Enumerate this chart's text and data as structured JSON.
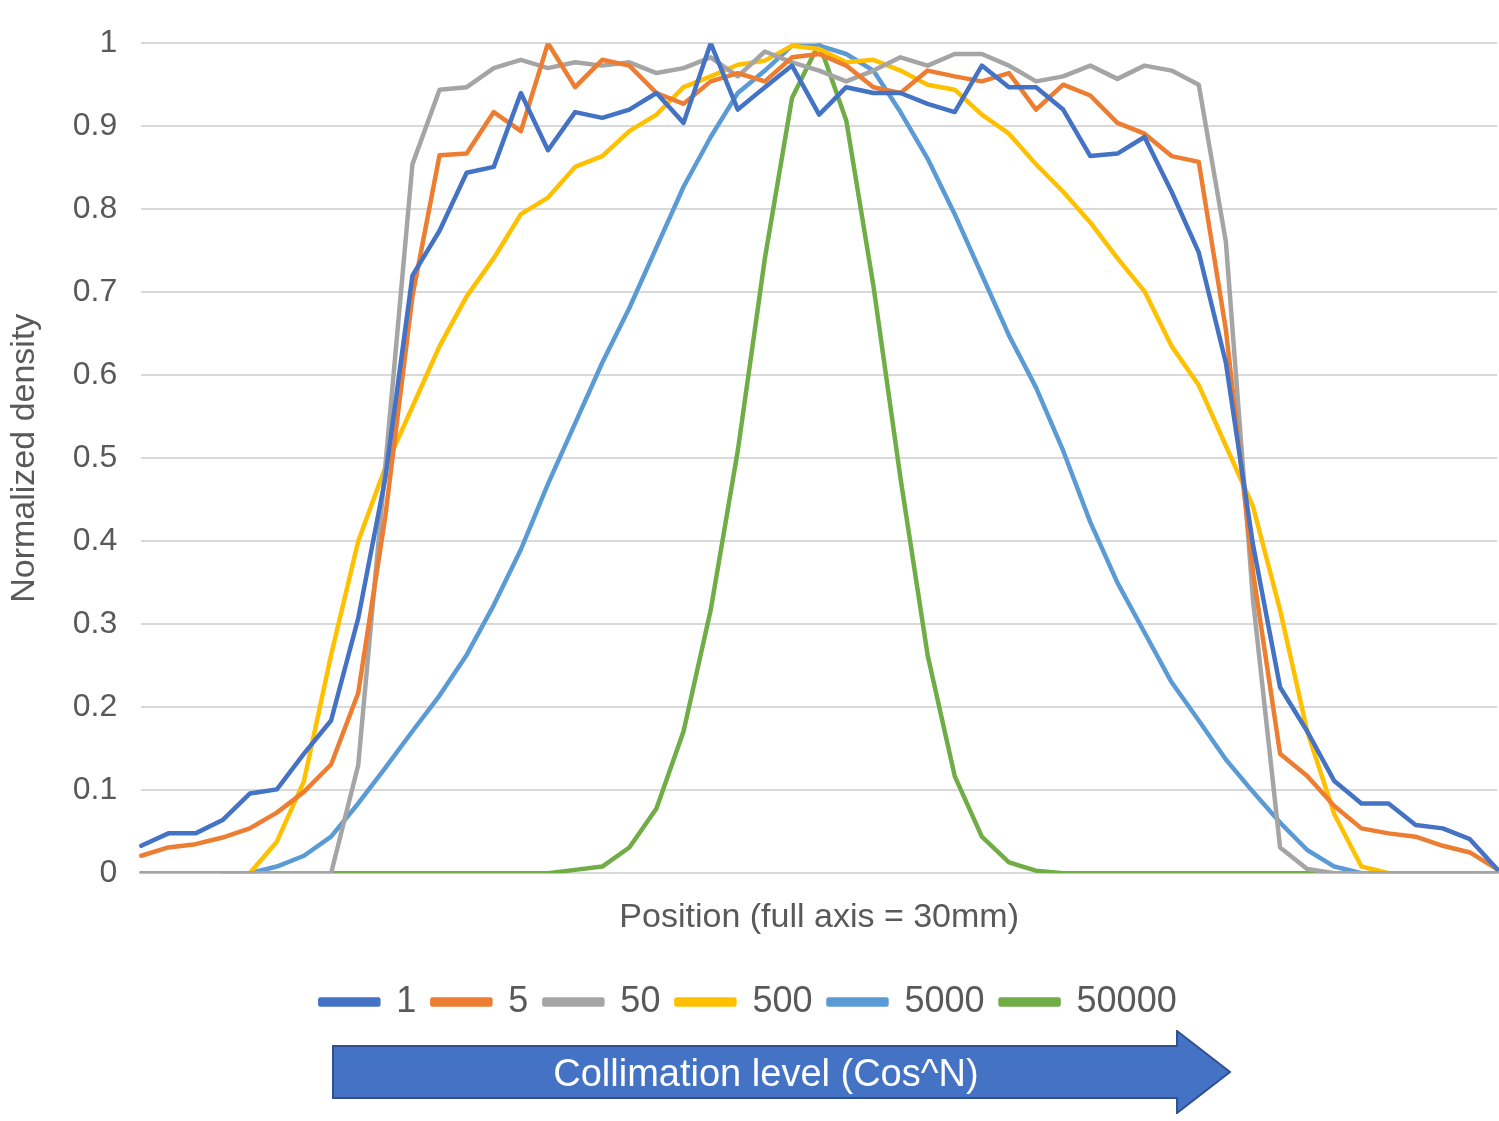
{
  "chart_data": {
    "type": "line",
    "xlabel": "Position (full axis = 30mm)",
    "ylabel": "Normalized density",
    "legend_title": "Collimation level (Cos^N)",
    "categories": [
      null,
      null,
      null,
      null,
      null,
      null,
      null,
      null,
      null,
      null,
      null,
      null,
      null,
      null,
      null,
      null,
      null,
      null,
      null,
      null,
      null,
      null,
      null,
      null,
      null,
      null,
      null,
      null,
      null,
      null,
      null,
      null,
      null,
      null,
      null,
      null,
      null,
      null,
      null,
      null,
      null,
      null,
      null,
      null,
      null,
      null,
      null,
      null,
      null,
      null,
      null
    ],
    "ylim": [
      0,
      1
    ],
    "yticks": [
      0,
      0.1,
      0.2,
      0.3,
      0.4,
      0.5,
      0.6,
      0.7,
      0.8,
      0.9,
      1
    ],
    "grid": "y",
    "legend": "bottom",
    "tick_labels": "y",
    "marker": "none",
    "line_style": "solid",
    "series": [
      {
        "name": "1",
        "color": "#4472c4",
        "values": [
          0.033,
          0.048,
          0.048,
          0.064,
          0.096,
          0.101,
          0.144,
          0.184,
          0.307,
          0.476,
          0.72,
          0.774,
          0.844,
          0.851,
          0.94,
          0.871,
          0.917,
          0.91,
          0.92,
          0.94,
          0.904,
          1.0,
          0.92,
          0.947,
          0.973,
          0.914,
          0.947,
          0.94,
          0.94,
          0.927,
          0.917,
          0.973,
          0.947,
          0.947,
          0.92,
          0.864,
          0.867,
          0.887,
          0.821,
          0.748,
          0.615,
          0.396,
          0.224,
          0.171,
          0.111,
          0.084,
          0.084,
          0.058,
          0.054,
          0.041,
          0.005
        ]
      },
      {
        "name": "5",
        "color": "#ed7d31",
        "values": [
          0.021,
          0.031,
          0.035,
          0.043,
          0.054,
          0.073,
          0.098,
          0.131,
          0.217,
          0.43,
          0.695,
          0.865,
          0.867,
          0.917,
          0.894,
          1.0,
          0.947,
          0.98,
          0.973,
          0.94,
          0.927,
          0.954,
          0.964,
          0.954,
          0.983,
          0.987,
          0.973,
          0.947,
          0.94,
          0.967,
          0.96,
          0.954,
          0.964,
          0.92,
          0.95,
          0.937,
          0.904,
          0.891,
          0.864,
          0.857,
          0.655,
          0.363,
          0.144,
          0.117,
          0.081,
          0.054,
          0.048,
          0.044,
          0.033,
          0.025,
          0.005
        ]
      },
      {
        "name": "50",
        "color": "#a5a5a5",
        "values": [
          0,
          0,
          0,
          0,
          0,
          0,
          0,
          0,
          0.13,
          0.49,
          0.854,
          0.944,
          0.947,
          0.97,
          0.98,
          0.97,
          0.977,
          0.973,
          0.977,
          0.964,
          0.97,
          0.983,
          0.96,
          0.99,
          0.977,
          0.967,
          0.954,
          0.967,
          0.983,
          0.973,
          0.987,
          0.987,
          0.973,
          0.954,
          0.96,
          0.973,
          0.957,
          0.973,
          0.967,
          0.95,
          0.761,
          0.33,
          0.031,
          0.005,
          0,
          0,
          0,
          0,
          0,
          0,
          0
        ]
      },
      {
        "name": "500",
        "color": "#ffc000",
        "values": [
          null,
          null,
          null,
          0,
          0,
          0.038,
          0.111,
          0.263,
          0.4,
          0.489,
          0.562,
          0.635,
          0.695,
          0.741,
          0.794,
          0.814,
          0.851,
          0.864,
          0.894,
          0.914,
          0.947,
          0.96,
          0.974,
          0.979,
          0.997,
          0.993,
          0.977,
          0.98,
          0.967,
          0.95,
          0.944,
          0.914,
          0.891,
          0.854,
          0.821,
          0.784,
          0.741,
          0.701,
          0.635,
          0.588,
          0.515,
          0.442,
          0.317,
          0.171,
          0.071,
          0.008,
          0,
          0,
          0,
          null,
          null
        ]
      },
      {
        "name": "5000",
        "color": "#5b9bd5",
        "values": [
          null,
          null,
          null,
          0,
          0,
          0.008,
          0.021,
          0.044,
          0.084,
          0.127,
          0.171,
          0.214,
          0.263,
          0.323,
          0.39,
          0.469,
          0.542,
          0.615,
          0.681,
          0.754,
          0.827,
          0.887,
          0.94,
          0.967,
          0.997,
          0.997,
          0.987,
          0.967,
          0.917,
          0.861,
          0.794,
          0.721,
          0.648,
          0.585,
          0.509,
          0.423,
          0.35,
          0.29,
          0.23,
          0.184,
          0.137,
          0.098,
          0.061,
          0.028,
          0.008,
          0,
          0,
          0,
          0,
          0,
          0
        ]
      },
      {
        "name": "50000",
        "color": "#70ad47",
        "values": [
          0,
          0,
          0,
          0,
          0,
          0,
          0,
          0,
          0,
          0,
          0,
          0,
          0,
          0,
          0,
          0,
          0.004,
          0.008,
          0.031,
          0.078,
          0.171,
          0.317,
          0.509,
          0.741,
          0.934,
          1.0,
          0.907,
          0.708,
          0.476,
          0.263,
          0.117,
          0.044,
          0.013,
          0.003,
          0,
          0,
          0,
          0,
          0,
          0,
          0,
          0,
          0,
          0,
          0,
          0,
          0,
          0,
          0,
          0,
          0
        ]
      }
    ]
  }
}
